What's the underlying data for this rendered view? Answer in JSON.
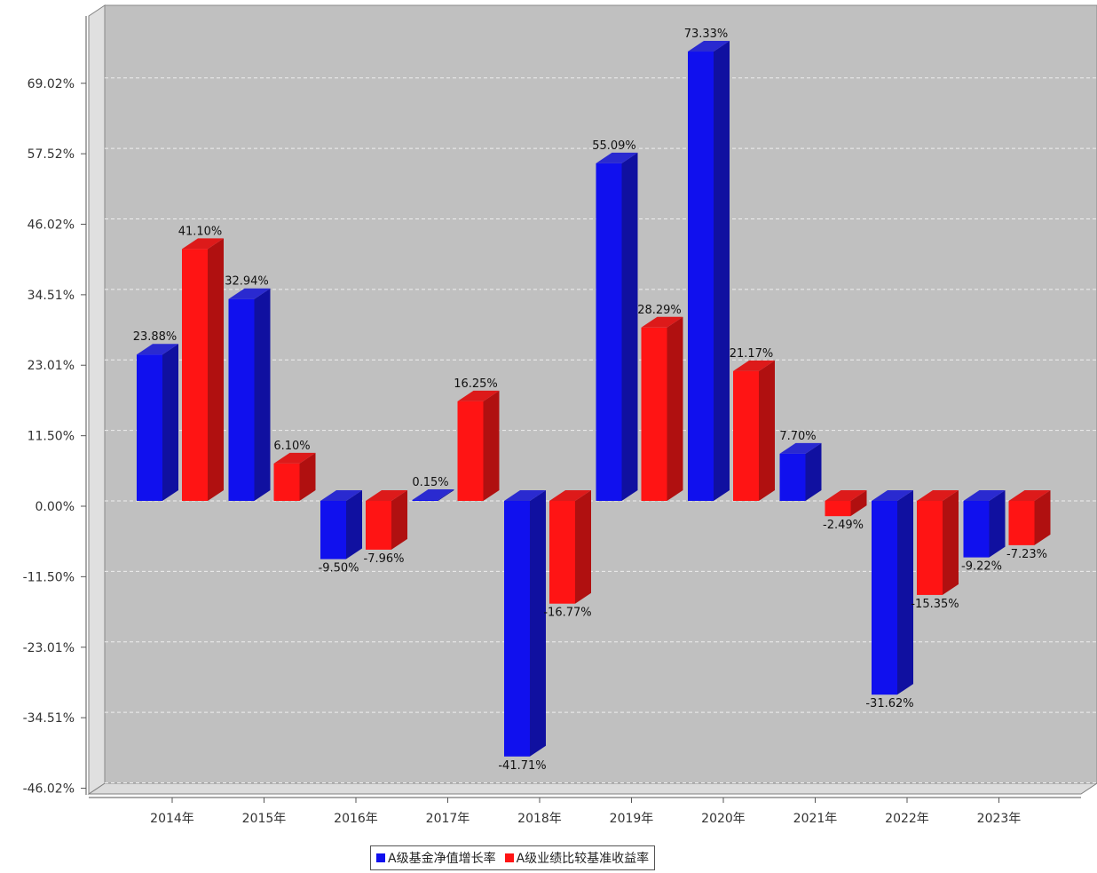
{
  "chart_data": {
    "type": "bar",
    "categories": [
      "2014年",
      "2015年",
      "2016年",
      "2017年",
      "2018年",
      "2019年",
      "2020年",
      "2021年",
      "2022年",
      "2023年"
    ],
    "series": [
      {
        "name": "A级基金净值增长率",
        "color": "#1010ee",
        "values": [
          23.88,
          32.94,
          -9.5,
          0.15,
          -41.71,
          55.09,
          73.33,
          7.7,
          -31.62,
          -9.22
        ],
        "labels": [
          "23.88%",
          "32.94%",
          "-9.50%",
          "0.15%",
          "-41.71%",
          "55.09%",
          "73.33%",
          "7.70%",
          "-31.62%",
          "-9.22%"
        ]
      },
      {
        "name": "A级业绩比较基准收益率",
        "color": "#ff1414",
        "values": [
          41.1,
          6.1,
          -7.96,
          16.25,
          -16.77,
          28.29,
          21.17,
          -2.49,
          -15.35,
          -7.23
        ],
        "labels": [
          "41.10%",
          "6.10%",
          "-7.96%",
          "16.25%",
          "-16.77%",
          "28.29%",
          "21.17%",
          "-2.49%",
          "-15.35%",
          "-7.23%"
        ]
      }
    ],
    "yticks": [
      69.02,
      57.52,
      46.02,
      34.51,
      23.01,
      11.5,
      0.0,
      -11.5,
      -23.01,
      -34.51,
      -46.02
    ],
    "ytick_labels": [
      "69.02%",
      "57.52%",
      "46.02%",
      "34.51%",
      "23.01%",
      "11.50%",
      "0.00%",
      "-11.50%",
      "-23.01%",
      "-34.51%",
      "-46.02%"
    ],
    "ylim": [
      -46.02,
      77.5
    ],
    "grid": true,
    "legend_position": "bottom-center",
    "plot_background": "#c0c0c0"
  }
}
